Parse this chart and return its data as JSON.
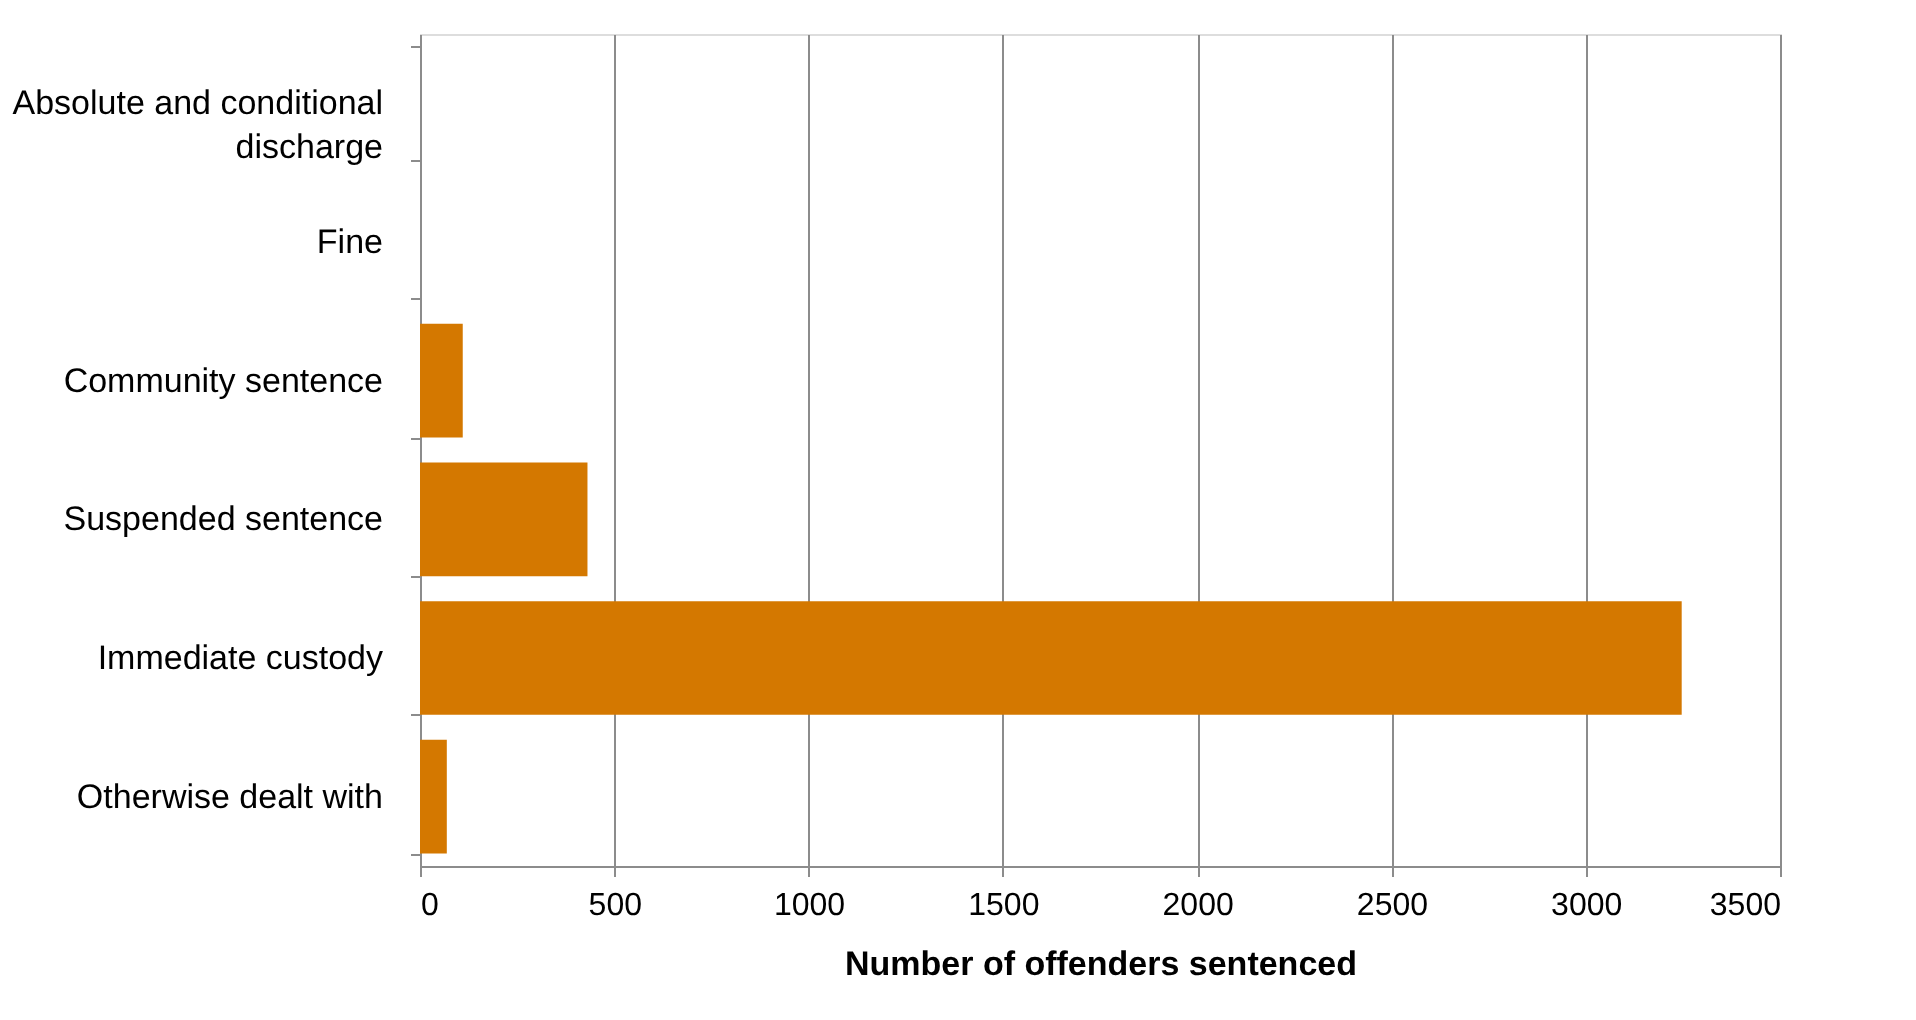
{
  "chart_data": {
    "type": "bar",
    "orientation": "horizontal",
    "xlabel": "Number of offenders  sentenced",
    "categories": [
      "Absolute and conditional discharge",
      "Fine",
      "Community sentence",
      "Suspended sentence",
      "Immediate custody",
      "Otherwise dealt with"
    ],
    "values": [
      0,
      0,
      110,
      431,
      3247,
      69
    ],
    "color": "#d47800",
    "xlim": [
      0,
      3500
    ],
    "xticks": [
      0,
      500,
      1000,
      1500,
      2000,
      2500,
      3000,
      3500
    ],
    "grid": "x"
  }
}
